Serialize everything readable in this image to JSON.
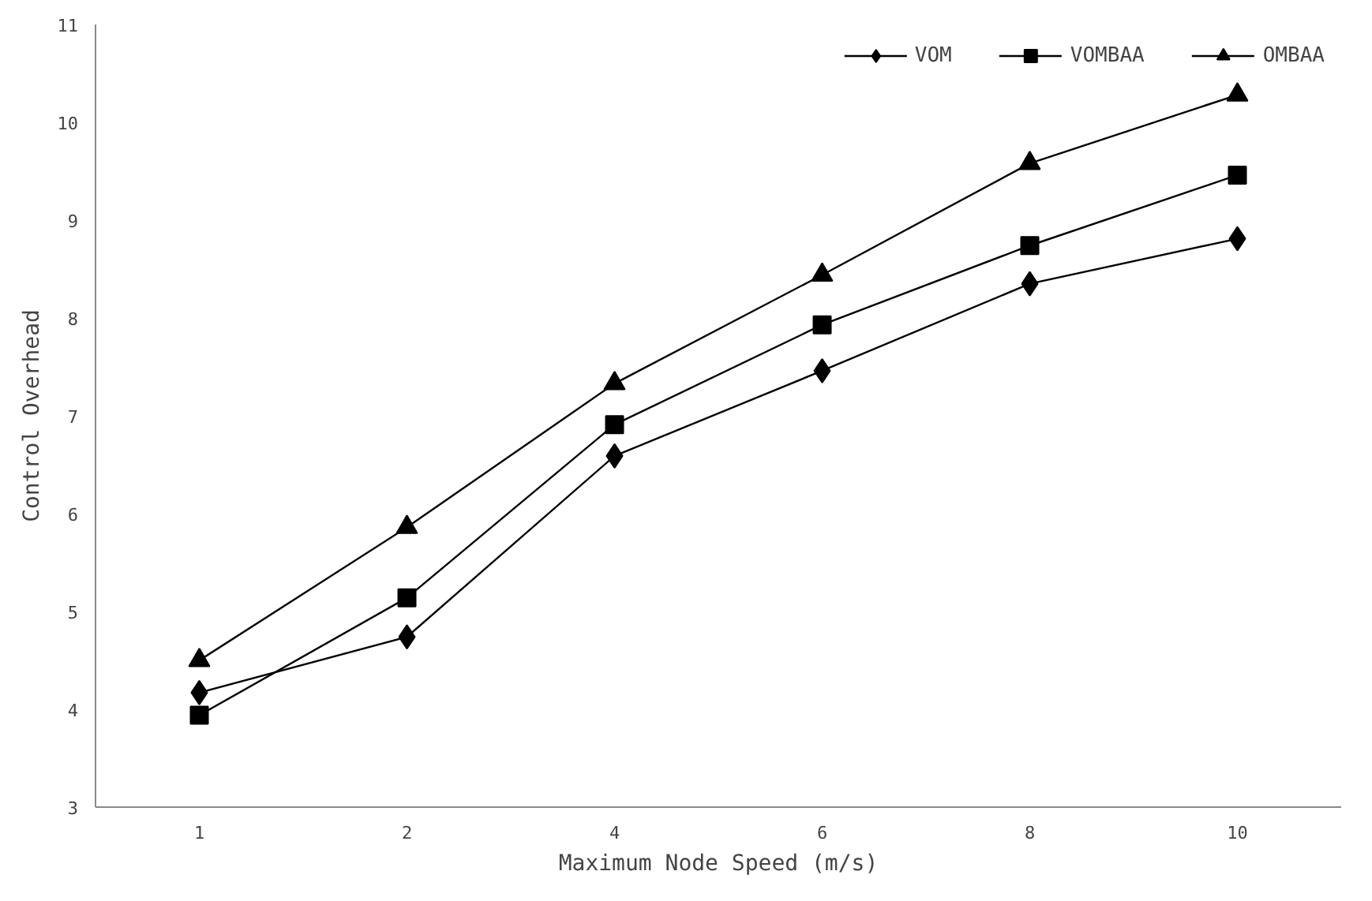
{
  "chart_data": {
    "type": "line",
    "xlabel": "Maximum Node Speed (m/s)",
    "ylabel": "Control Overhead",
    "categories": [
      "1",
      "2",
      "4",
      "6",
      "8",
      "10"
    ],
    "series": [
      {
        "name": "VOM",
        "color": "#000000",
        "marker": "diamond",
        "values": [
          4.17,
          4.74,
          6.59,
          7.46,
          8.35,
          8.81
        ]
      },
      {
        "name": "VOMBAA",
        "color": "#000000",
        "marker": "square",
        "values": [
          3.94,
          5.14,
          6.91,
          7.93,
          8.74,
          9.46
        ]
      },
      {
        "name": "OMBAA",
        "color": "#000000",
        "marker": "triangle",
        "values": [
          4.5,
          5.86,
          7.33,
          8.44,
          9.58,
          10.28
        ]
      }
    ],
    "ylim": [
      3,
      11
    ],
    "yticks": [
      3,
      4,
      5,
      6,
      7,
      8,
      9,
      10,
      11
    ],
    "grid": false,
    "legend": "top right",
    "line_style": "solid"
  }
}
